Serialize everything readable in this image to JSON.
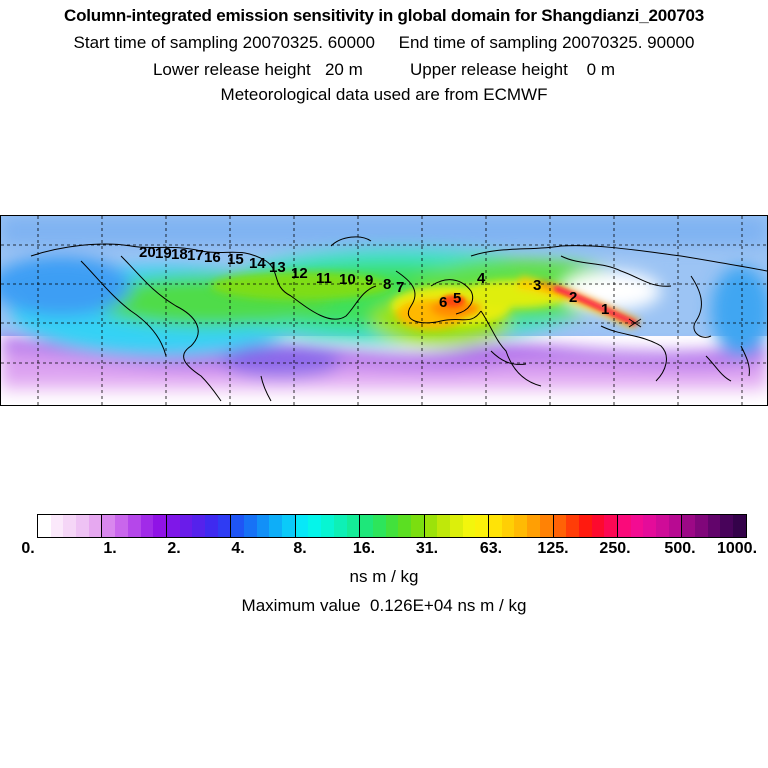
{
  "header": {
    "title": "Column-integrated emission sensitivity in global domain for Shangdianzi_200703",
    "sampling": "Start time of sampling 20070325. 60000     End time of sampling 20070325. 90000",
    "release": "Lower release height   20 m          Upper release height    0 m",
    "meteo": "Meteorological data used are from ECMWF"
  },
  "legend": {
    "tick_labels": [
      "0.",
      "1.",
      "2.",
      "4.",
      "8.",
      "16.",
      "31.",
      "63.",
      "125.",
      "250.",
      "500.",
      "1000."
    ],
    "unit": "ns m / kg",
    "max_value": "Maximum value  0.126E+04 ns m / kg",
    "colors": [
      "#ffffff",
      "#fbe9fb",
      "#f5d6f7",
      "#eec2f4",
      "#e6a8f0",
      "#d987ee",
      "#c966ec",
      "#b547ea",
      "#a12be8",
      "#9013e6",
      "#7f17e8",
      "#6a1cea",
      "#5522ec",
      "#3f2af0",
      "#2f3cf3",
      "#1f55f5",
      "#1772f6",
      "#1290f7",
      "#0eaef8",
      "#0bcaf9",
      "#07e8f8",
      "#05f5ea",
      "#08f5d2",
      "#0ef0b6",
      "#14ec98",
      "#1ee77a",
      "#2de55b",
      "#42e13c",
      "#5bdf22",
      "#7bde10",
      "#9ce20a",
      "#bfe80a",
      "#dcef0b",
      "#f3f60c",
      "#fbf10a",
      "#ffe307",
      "#ffcf05",
      "#ffba04",
      "#ff9f04",
      "#ff8205",
      "#ff6206",
      "#ff3d08",
      "#ff1a0f",
      "#fd0a2e",
      "#fc0854",
      "#fa0a7a",
      "#f30c92",
      "#e40c9a",
      "#cf0c98",
      "#b80a92",
      "#9c0886",
      "#80067a",
      "#62046b",
      "#48035a",
      "#34024a"
    ]
  },
  "track_labels": [
    "1",
    "2",
    "3",
    "4",
    "5",
    "6",
    "7",
    "8",
    "9",
    "10",
    "11",
    "12",
    "13",
    "14",
    "15",
    "16",
    "17",
    "18",
    "19",
    "20"
  ]
}
